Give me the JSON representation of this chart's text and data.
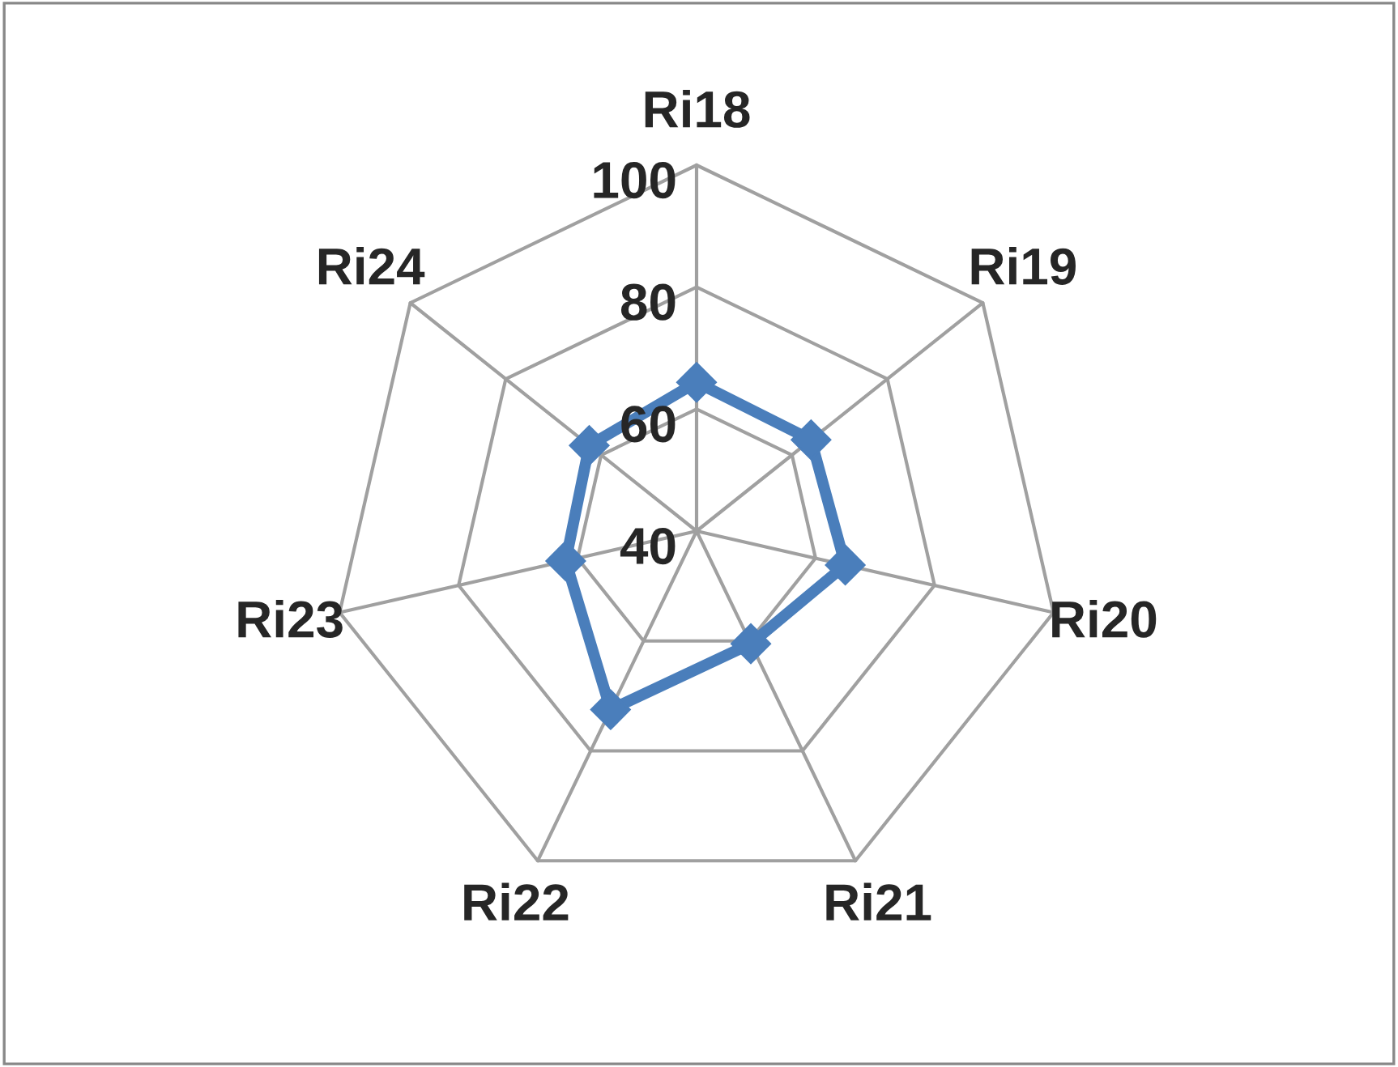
{
  "chart_data": {
    "type": "radar",
    "categories": [
      "Ri18",
      "Ri19",
      "Ri20",
      "Ri21",
      "Ri22",
      "Ri23",
      "Ri24"
    ],
    "series": [
      {
        "color": "#4a7ebb",
        "values": [
          64.4,
          64,
          65,
          60.5,
          72.5,
          62,
          62.5
        ]
      }
    ],
    "ylim": [
      40,
      100
    ],
    "yticks": [
      40,
      60,
      80,
      100
    ],
    "grid": true,
    "marker": "diamond",
    "line_style": "solid"
  }
}
